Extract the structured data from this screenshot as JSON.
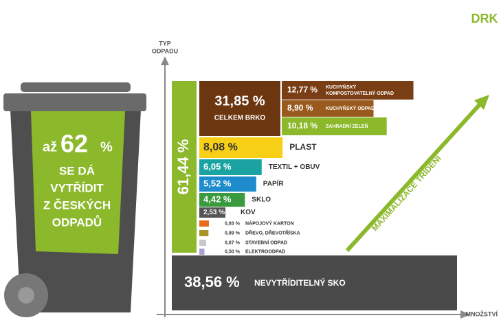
{
  "logo": "DRK",
  "axis": {
    "y_label": [
      "TYP",
      "ODPADU"
    ],
    "x_label": "MNOŽSTVÍ"
  },
  "bin": {
    "prefix": "až",
    "value": "62",
    "unit": "%",
    "lines": [
      "SE DÁ",
      "VYTŘÍDIT",
      "Z ČESKÝCH",
      "ODPADŮ"
    ]
  },
  "sorted_total": "61,44 %",
  "brko": {
    "label": "31,85 %",
    "name": "CELKEM BRKO",
    "parts": [
      {
        "value": 12.77,
        "label": "12,77 %",
        "lines": [
          "KUCHYŇSKÝ",
          "KOMPOSTOVATELNÝ ODPAD"
        ],
        "color": "#7a3e14"
      },
      {
        "value": 8.9,
        "label": "8,90 %",
        "lines": [
          "KUCHYŇSKÝ ODPAD"
        ],
        "color": "#9a5a1e"
      },
      {
        "value": 10.18,
        "label": "10,18 %",
        "lines": [
          "ZAHRADNÍ ZELEŇ"
        ],
        "color": "#8cb82b"
      }
    ]
  },
  "items": [
    {
      "value": 8.08,
      "label": "8,08 %",
      "name": "PLAST",
      "color": "#f7cf16"
    },
    {
      "value": 6.05,
      "label": "6,05 %",
      "name": "TEXTIL + OBUV",
      "color": "#1aa3a0"
    },
    {
      "value": 5.52,
      "label": "5,52 %",
      "name": "PAPÍR",
      "color": "#1e8ccc"
    },
    {
      "value": 4.42,
      "label": "4,42 %",
      "name": "SKLO",
      "color": "#3a9b3e"
    },
    {
      "value": 2.53,
      "label": "2,53 %",
      "name": "KOV",
      "color": "#555555"
    },
    {
      "value": 0.93,
      "label": "0,93 %",
      "name": "NÁPOJOVÝ KARTON",
      "color": "#e86a1a"
    },
    {
      "value": 0.89,
      "label": "0,89 %",
      "name": "DŘEVO, DŘEVOTŘÍSKA",
      "color": "#a8932a"
    },
    {
      "value": 0.67,
      "label": "0,67 %",
      "name": "STAVEBNÍ ODPAD",
      "color": "#c8c8c8"
    },
    {
      "value": 0.5,
      "label": "0,50 %",
      "name": "ELEKTROODPAD",
      "color": "#a8a0d0"
    }
  ],
  "residual": {
    "label": "38,56 %",
    "name": "NEVYTŘÍDITELNÝ SKO"
  },
  "arrow": "MAXIMALIZACE TŘÍDĚNÍ"
}
